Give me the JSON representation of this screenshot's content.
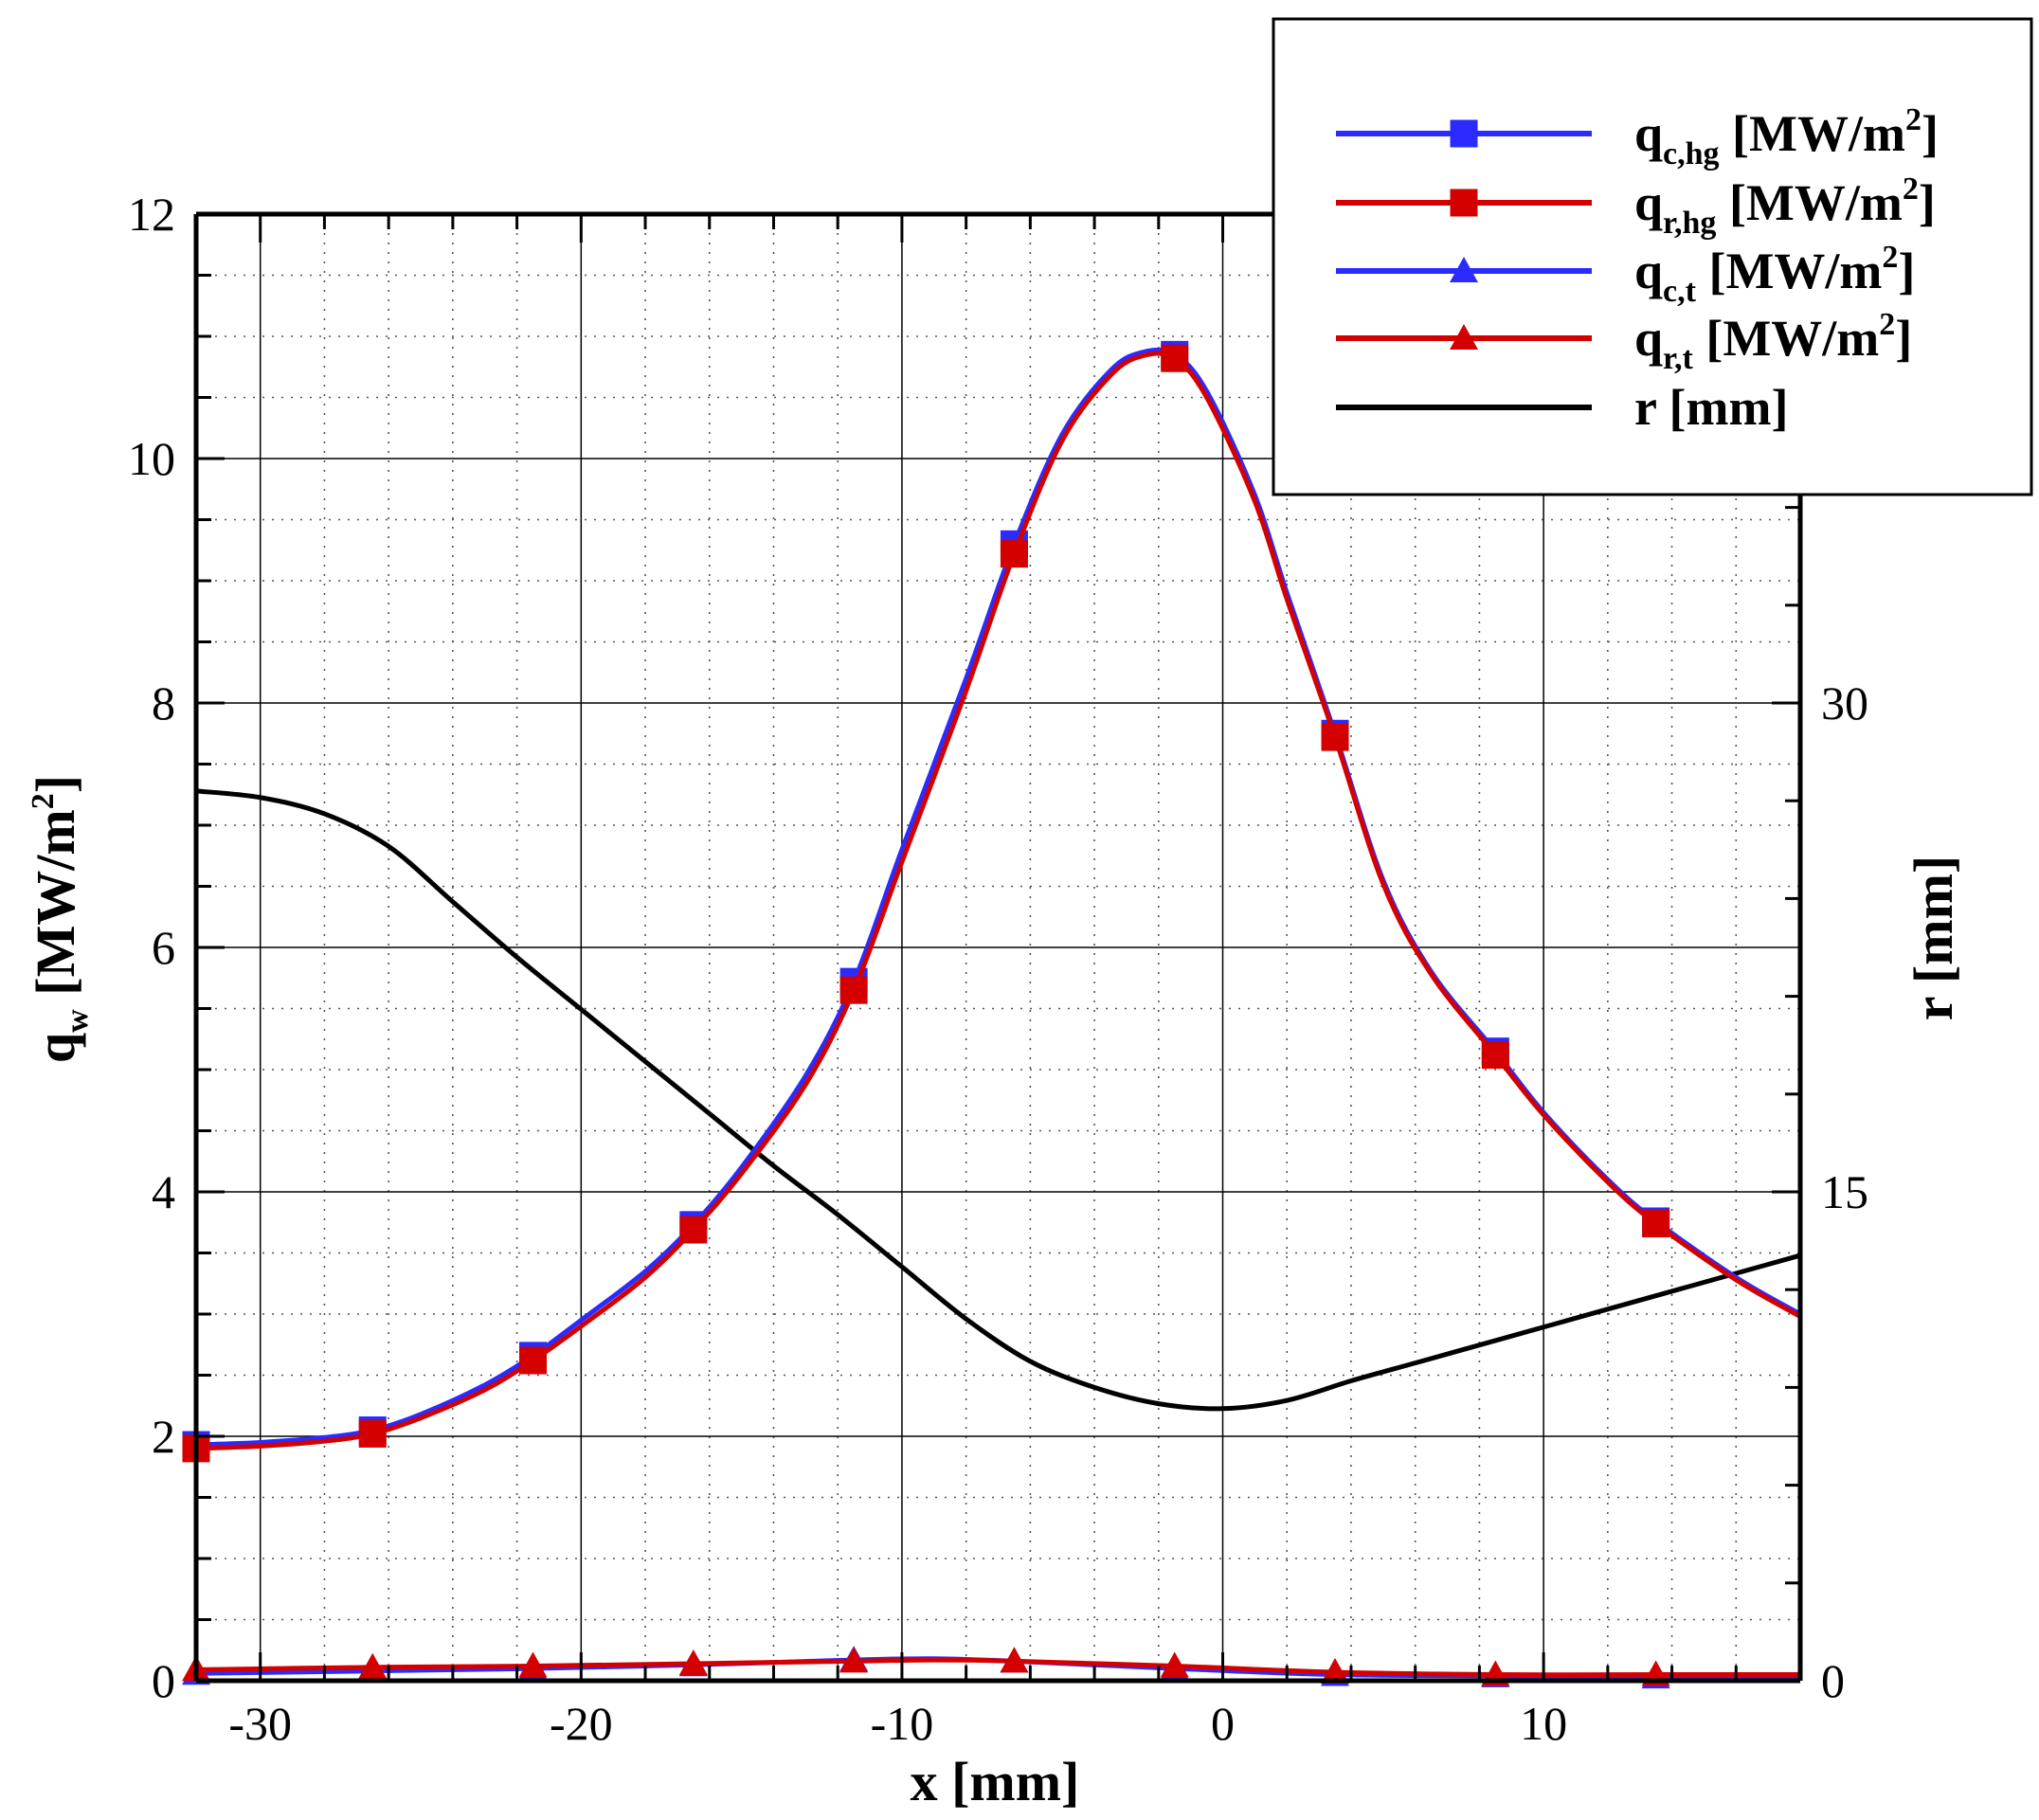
{
  "chart_data": {
    "type": "line",
    "title": "",
    "xlabel": "x [mm]",
    "ylabel": "q_w [MW/m^2]",
    "ylabel_right": "r [mm]",
    "xlim": [
      -32,
      18
    ],
    "ylim": [
      0,
      12
    ],
    "ylim_right": [
      0,
      45
    ],
    "x_ticks": [
      -30,
      -20,
      -10,
      0,
      10
    ],
    "x_tick_labels": [
      "-30",
      "-20",
      "-10",
      "0",
      "10"
    ],
    "y_ticks": [
      0,
      2,
      4,
      6,
      8,
      10,
      12
    ],
    "y_tick_labels": [
      "0",
      "2",
      "4",
      "6",
      "8",
      "10",
      "12"
    ],
    "y_right_ticks": [
      0,
      15,
      30
    ],
    "y_right_tick_labels": [
      "0",
      "15",
      "30"
    ],
    "grid": true,
    "legend_position": "top-right",
    "legend": [
      {
        "id": "qc_hg",
        "base": "q",
        "sub": "c,hg",
        "unit": "[MW/m",
        "unit_sup": "2",
        "unit_end": "]",
        "color": "#2b2bff",
        "marker": "square"
      },
      {
        "id": "qr_hg",
        "base": "q",
        "sub": "r,hg",
        "unit": "[MW/m",
        "unit_sup": "2",
        "unit_end": "]",
        "color": "#d40000",
        "marker": "square"
      },
      {
        "id": "qc_t",
        "base": "q",
        "sub": "c,t",
        "unit": "[MW/m",
        "unit_sup": "2",
        "unit_end": "]",
        "color": "#2b2bff",
        "marker": "triangle"
      },
      {
        "id": "qr_t",
        "base": "q",
        "sub": "r,t",
        "unit": "[MW/m",
        "unit_sup": "2",
        "unit_end": "]",
        "color": "#d40000",
        "marker": "triangle"
      },
      {
        "id": "r",
        "base": "r [mm]",
        "sub": "",
        "unit": "",
        "unit_sup": "",
        "unit_end": "",
        "color": "#000000",
        "marker": "none"
      }
    ],
    "series": [
      {
        "name": "q_c,hg [MW/m^2]",
        "axis": "left",
        "color": "#2b2bff",
        "marker": "square",
        "x": [
          -32,
          -30,
          -28,
          -26.5,
          -25,
          -23,
          -21.5,
          -20,
          -18,
          -16.5,
          -15,
          -13,
          -11.5,
          -10,
          -8,
          -6.5,
          -5,
          -3.5,
          -2.5,
          -1.5,
          -0.5,
          1,
          2,
          3.5,
          5,
          6.5,
          8.5,
          10,
          12,
          13.5,
          16,
          18
        ],
        "y": [
          1.93,
          1.95,
          1.99,
          2.05,
          2.18,
          2.42,
          2.66,
          2.95,
          3.35,
          3.73,
          4.2,
          4.95,
          5.72,
          6.8,
          8.2,
          9.3,
          10.2,
          10.72,
          10.87,
          10.85,
          10.55,
          9.7,
          8.9,
          7.75,
          6.55,
          5.8,
          5.15,
          4.65,
          4.1,
          3.76,
          3.3,
          3.0
        ],
        "marker_x": [
          -32,
          -26.5,
          -21.5,
          -16.5,
          -11.5,
          -6.5,
          -1.5,
          3.5,
          8.5,
          13.5
        ]
      },
      {
        "name": "q_r,hg [MW/m^2]",
        "axis": "left",
        "color": "#d40000",
        "marker": "square",
        "x": [
          -32,
          -30,
          -28,
          -26.5,
          -25,
          -23,
          -21.5,
          -20,
          -18,
          -16.5,
          -15,
          -13,
          -11.5,
          -10,
          -8,
          -6.5,
          -5,
          -3.5,
          -2.5,
          -1.5,
          -0.5,
          1,
          2,
          3.5,
          5,
          6.5,
          8.5,
          10,
          12,
          13.5,
          16,
          18
        ],
        "y": [
          1.9,
          1.92,
          1.96,
          2.02,
          2.15,
          2.38,
          2.62,
          2.9,
          3.3,
          3.69,
          4.15,
          4.88,
          5.65,
          6.7,
          8.1,
          9.22,
          10.15,
          10.68,
          10.84,
          10.82,
          10.5,
          9.65,
          8.85,
          7.72,
          6.52,
          5.78,
          5.12,
          4.63,
          4.08,
          3.74,
          3.28,
          2.98
        ],
        "marker_x": [
          -32,
          -26.5,
          -21.5,
          -16.5,
          -11.5,
          -6.5,
          -1.5,
          3.5,
          8.5,
          13.5
        ]
      },
      {
        "name": "q_c,t [MW/m^2]",
        "axis": "left",
        "color": "#2b2bff",
        "marker": "triangle",
        "x": [
          -32,
          -26.5,
          -21.5,
          -16.5,
          -11.5,
          -9,
          -6.5,
          -1.5,
          3.5,
          8.5,
          13.5,
          18
        ],
        "y": [
          0.06,
          0.08,
          0.1,
          0.13,
          0.17,
          0.18,
          0.16,
          0.1,
          0.05,
          0.04,
          0.03,
          0.03
        ],
        "marker_x": [
          -32,
          -26.5,
          -21.5,
          -16.5,
          -11.5,
          -6.5,
          -1.5,
          3.5,
          8.5,
          13.5
        ]
      },
      {
        "name": "q_r,t [MW/m^2]",
        "axis": "left",
        "color": "#d40000",
        "marker": "triangle",
        "x": [
          -32,
          -26.5,
          -21.5,
          -16.5,
          -11.5,
          -9,
          -6.5,
          -1.5,
          3.5,
          8.5,
          13.5,
          18
        ],
        "y": [
          0.09,
          0.11,
          0.12,
          0.14,
          0.16,
          0.17,
          0.16,
          0.12,
          0.07,
          0.05,
          0.05,
          0.05
        ],
        "marker_x": [
          -32,
          -26.5,
          -21.5,
          -16.5,
          -11.5,
          -6.5,
          -1.5,
          3.5,
          8.5,
          13.5
        ]
      },
      {
        "name": "r [mm]",
        "axis": "right",
        "color": "#000000",
        "marker": "none",
        "x": [
          -32,
          -30,
          -28,
          -26,
          -24,
          -22,
          -20,
          -18,
          -16,
          -14,
          -12,
          -10,
          -8,
          -6,
          -4,
          -2,
          0,
          2,
          4,
          6,
          8,
          10,
          12,
          14,
          16,
          18
        ],
        "y": [
          27.3,
          27.1,
          26.6,
          25.6,
          23.9,
          22.2,
          20.6,
          19.0,
          17.4,
          15.8,
          14.3,
          12.7,
          11.1,
          9.8,
          9.0,
          8.5,
          8.35,
          8.6,
          9.2,
          9.75,
          10.3,
          10.85,
          11.4,
          11.95,
          12.5,
          13.05
        ]
      }
    ]
  }
}
